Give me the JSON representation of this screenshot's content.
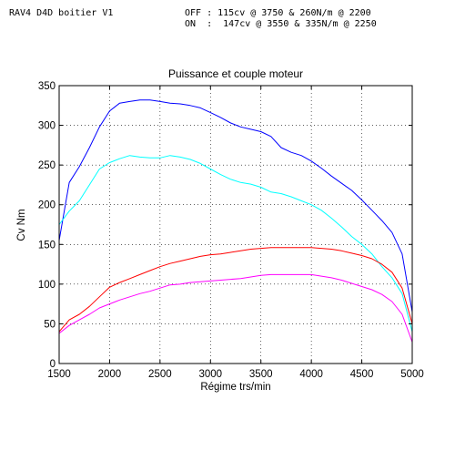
{
  "header": {
    "left": "RAV4 D4D boitier V1",
    "line1": "OFF : 115cv @ 3750 & 260N/m @ 2200",
    "line2": "ON  :  147cv @ 3550 & 335N/m @ 2250"
  },
  "chart_data": {
    "type": "line",
    "title": "Puissance et couple moteur",
    "xlabel": "Régime trs/min",
    "ylabel": "Cv Nm",
    "xlim": [
      1500,
      5000
    ],
    "ylim": [
      0,
      350
    ],
    "xticks": [
      1500,
      2000,
      2500,
      3000,
      3500,
      4000,
      4500,
      5000
    ],
    "yticks": [
      0,
      50,
      100,
      150,
      200,
      250,
      300,
      350
    ],
    "grid": true,
    "series": [
      {
        "color": "#0000ff",
        "x": [
          1500,
          1600,
          1700,
          1800,
          1900,
          2000,
          2100,
          2200,
          2300,
          2400,
          2500,
          2600,
          2700,
          2800,
          2900,
          3000,
          3100,
          3200,
          3300,
          3400,
          3500,
          3600,
          3700,
          3800,
          3900,
          4000,
          4100,
          4200,
          4300,
          4400,
          4500,
          4600,
          4700,
          4800,
          4900,
          5000
        ],
        "y": [
          155,
          228,
          248,
          272,
          298,
          318,
          328,
          330,
          332,
          332,
          330,
          328,
          327,
          325,
          322,
          316,
          310,
          303,
          298,
          295,
          292,
          286,
          272,
          266,
          262,
          255,
          246,
          236,
          227,
          218,
          206,
          193,
          180,
          165,
          138,
          65
        ]
      },
      {
        "color": "#00ffff",
        "x": [
          1500,
          1600,
          1700,
          1800,
          1900,
          2000,
          2100,
          2200,
          2300,
          2400,
          2500,
          2600,
          2700,
          2800,
          2900,
          3000,
          3100,
          3200,
          3300,
          3400,
          3500,
          3600,
          3700,
          3800,
          3900,
          4000,
          4100,
          4200,
          4300,
          4400,
          4500,
          4600,
          4700,
          4800,
          4900,
          5000
        ],
        "y": [
          175,
          192,
          205,
          225,
          245,
          253,
          258,
          262,
          260,
          259,
          259,
          262,
          260,
          257,
          252,
          245,
          238,
          232,
          228,
          226,
          222,
          216,
          214,
          210,
          205,
          200,
          193,
          183,
          172,
          160,
          150,
          138,
          122,
          108,
          88,
          40
        ]
      },
      {
        "color": "#ff0000",
        "x": [
          1500,
          1600,
          1700,
          1800,
          1900,
          2000,
          2100,
          2200,
          2300,
          2400,
          2500,
          2600,
          2700,
          2800,
          2900,
          3000,
          3100,
          3200,
          3300,
          3400,
          3500,
          3600,
          3700,
          3800,
          3900,
          4000,
          4100,
          4200,
          4300,
          4400,
          4500,
          4600,
          4700,
          4800,
          4900,
          5000
        ],
        "y": [
          40,
          55,
          62,
          72,
          84,
          96,
          102,
          107,
          112,
          117,
          122,
          126,
          129,
          132,
          135,
          137,
          138,
          140,
          142,
          144,
          145,
          146,
          146,
          146,
          146,
          146,
          145,
          144,
          142,
          139,
          136,
          132,
          125,
          115,
          95,
          50
        ]
      },
      {
        "color": "#ff00ff",
        "x": [
          1500,
          1600,
          1700,
          1800,
          1900,
          2000,
          2100,
          2200,
          2300,
          2400,
          2500,
          2600,
          2700,
          2800,
          2900,
          3000,
          3100,
          3200,
          3300,
          3400,
          3500,
          3600,
          3700,
          3800,
          3900,
          4000,
          4100,
          4200,
          4300,
          4400,
          4500,
          4600,
          4700,
          4800,
          4900,
          5000
        ],
        "y": [
          38,
          48,
          55,
          62,
          70,
          75,
          80,
          84,
          88,
          91,
          95,
          99,
          100,
          102,
          103,
          104,
          105,
          106,
          107,
          109,
          111,
          112,
          112,
          112,
          112,
          112,
          110,
          108,
          105,
          101,
          97,
          93,
          87,
          78,
          62,
          27
        ]
      }
    ]
  }
}
